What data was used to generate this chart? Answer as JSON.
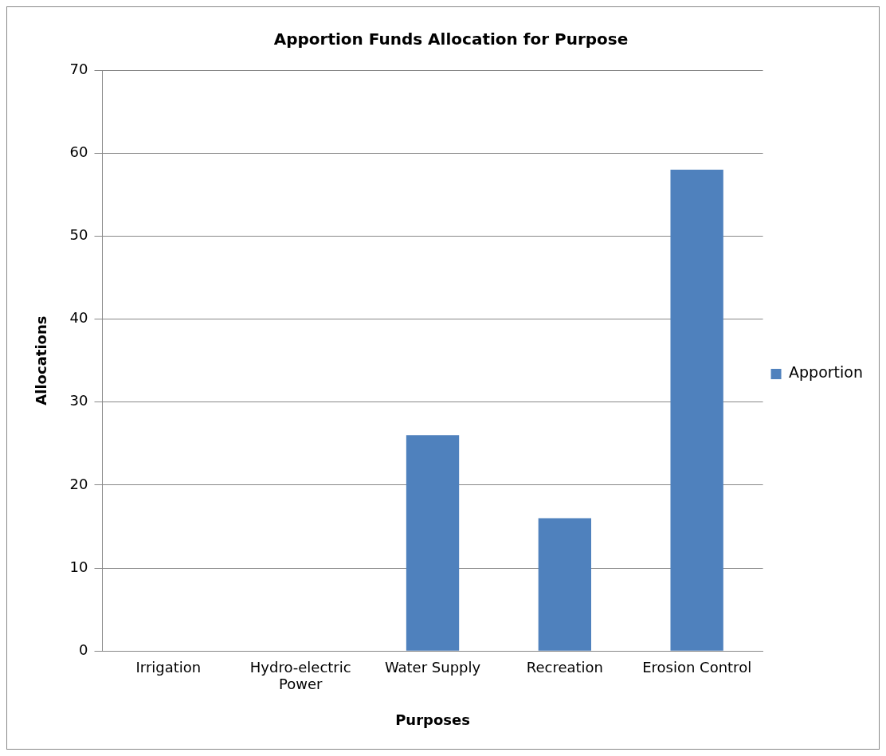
{
  "chart_data": {
    "type": "bar",
    "title": "Apportion Funds Allocation for Purpose",
    "xlabel": "Purposes",
    "ylabel": "Allocations",
    "categories": [
      "Irrigation",
      "Hydro-electric Power",
      "Water Supply",
      "Recreation",
      "Erosion Control"
    ],
    "series": [
      {
        "name": "Apportion",
        "color": "#4f81bd",
        "values": [
          0,
          0,
          26,
          16,
          58
        ]
      }
    ],
    "ylim": [
      0,
      70
    ],
    "yticks": [
      0,
      10,
      20,
      30,
      40,
      50,
      60,
      70
    ],
    "grid": "y",
    "legend": "right"
  }
}
